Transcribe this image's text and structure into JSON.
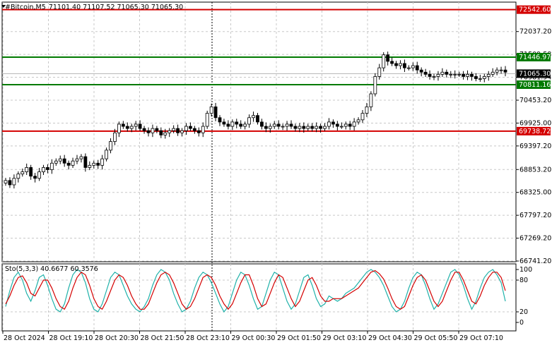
{
  "header": {
    "symbol": "#Bitcoin,M5",
    "ohlc": "71101.40 71107.52 71065.30 71065.30"
  },
  "chart_data": {
    "type": "candlestick",
    "price_axis": {
      "ticks": [
        "72037.20",
        "71509.58",
        "70981.94",
        "70453.20",
        "69925.00",
        "69397.20",
        "68853.20",
        "68325.00",
        "67797.20",
        "67269.20",
        "66741.20"
      ],
      "range": [
        66741.2,
        72700
      ]
    },
    "levels": [
      {
        "price": 72542.6,
        "label": "72542.60",
        "color": "#d40000"
      },
      {
        "price": 71446.97,
        "label": "71446.97",
        "color": "#007a00"
      },
      {
        "price": 70811.16,
        "label": "70811.16",
        "color": "#007a00"
      },
      {
        "price": 69738.72,
        "label": "69738.72",
        "color": "#d40000"
      }
    ],
    "current_price": {
      "price": 71065.3,
      "label": "71065.30"
    },
    "x_ticks": [
      "28 Oct 2024",
      "28 Oct 19:10",
      "28 Oct 20:30",
      "28 Oct 21:50",
      "28 Oct 23:10",
      "29 Oct 00:30",
      "29 Oct 01:50",
      "29 Oct 03:10",
      "29 Oct 04:30",
      "29 Oct 05:50",
      "29 Oct 07:10"
    ],
    "close_series": [
      68600,
      68500,
      68650,
      68750,
      68800,
      68900,
      68700,
      68650,
      68800,
      68900,
      68850,
      69000,
      69050,
      69100,
      69000,
      68950,
      69050,
      69100,
      69150,
      68900,
      68950,
      69000,
      68950,
      69100,
      69300,
      69500,
      69700,
      69900,
      69850,
      69800,
      69850,
      69900,
      69800,
      69750,
      69700,
      69800,
      69750,
      69650,
      69700,
      69750,
      69800,
      69700,
      69750,
      69850,
      69800,
      69750,
      69700,
      69850,
      70150,
      70300,
      70050,
      69950,
      69900,
      69850,
      69950,
      69900,
      69850,
      69900,
      70050,
      70100,
      69950,
      69850,
      69800,
      69850,
      69900,
      69850,
      69850,
      69900,
      69850,
      69800,
      69850,
      69800,
      69850,
      69800,
      69850,
      69800,
      69850,
      69950,
      69900,
      69850,
      69850,
      69900,
      69850,
      69950,
      70000,
      70150,
      70300,
      70600,
      71000,
      71200,
      71500,
      71350,
      71300,
      71250,
      71300,
      71200,
      71200,
      71250,
      71150,
      71100,
      71050,
      71000,
      71000,
      71050,
      71100,
      71050,
      71050,
      71050,
      71050,
      71000,
      71050,
      71000,
      70950,
      70950,
      71000,
      71050,
      71100,
      71150,
      71150,
      71100
    ],
    "oscillator": {
      "label": "Sto(5,3,3) 40.6677 60.3576",
      "ticks": [
        "100",
        "80",
        "20",
        "0"
      ],
      "main": [
        30,
        60,
        85,
        95,
        80,
        55,
        40,
        60,
        85,
        90,
        70,
        45,
        25,
        20,
        35,
        65,
        90,
        100,
        95,
        75,
        45,
        25,
        20,
        35,
        60,
        85,
        95,
        90,
        70,
        50,
        35,
        25,
        20,
        30,
        45,
        70,
        90,
        100,
        95,
        80,
        55,
        35,
        20,
        25,
        40,
        65,
        85,
        95,
        90,
        75,
        55,
        35,
        20,
        30,
        55,
        80,
        95,
        90,
        70,
        45,
        25,
        30,
        55,
        80,
        95,
        90,
        65,
        40,
        25,
        35,
        60,
        85,
        90,
        70,
        45,
        30,
        35,
        50,
        45,
        40,
        45,
        55,
        60,
        65,
        75,
        85,
        95,
        100,
        95,
        85,
        70,
        50,
        30,
        20,
        25,
        40,
        65,
        85,
        95,
        90,
        70,
        45,
        25,
        35,
        55,
        75,
        95,
        100,
        90,
        70,
        45,
        25,
        40,
        65,
        85,
        95,
        100,
        90,
        75,
        40
      ],
      "signal": [
        35,
        50,
        70,
        85,
        88,
        75,
        55,
        50,
        65,
        80,
        80,
        65,
        45,
        30,
        25,
        40,
        65,
        85,
        95,
        90,
        70,
        45,
        30,
        25,
        40,
        60,
        80,
        90,
        85,
        70,
        50,
        35,
        25,
        25,
        35,
        55,
        75,
        90,
        95,
        90,
        75,
        55,
        35,
        25,
        30,
        45,
        65,
        85,
        90,
        85,
        70,
        50,
        35,
        25,
        35,
        55,
        75,
        90,
        90,
        70,
        45,
        30,
        35,
        55,
        75,
        90,
        85,
        65,
        45,
        30,
        40,
        60,
        80,
        85,
        70,
        50,
        40,
        40,
        45,
        45,
        45,
        50,
        55,
        60,
        65,
        75,
        85,
        95,
        98,
        92,
        82,
        65,
        45,
        30,
        25,
        30,
        50,
        70,
        85,
        90,
        80,
        60,
        40,
        30,
        40,
        60,
        80,
        95,
        95,
        80,
        60,
        40,
        35,
        50,
        70,
        85,
        95,
        95,
        85,
        60
      ]
    }
  }
}
